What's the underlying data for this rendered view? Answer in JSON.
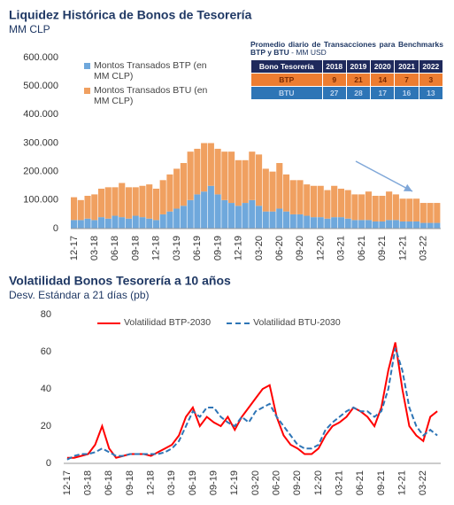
{
  "chart_data": [
    {
      "type": "bar",
      "stacked": true,
      "title": "Liquidez Histórica de Bonos de Tesorería",
      "subtitle": "MM CLP",
      "categories": [
        "12-17",
        null,
        null,
        "03-18",
        null,
        null,
        "06-18",
        null,
        null,
        "09-18",
        null,
        null,
        "12-18",
        null,
        null,
        "03-19",
        null,
        null,
        "06-19",
        null,
        null,
        "09-19",
        null,
        null,
        "12-19",
        null,
        null,
        "03-20",
        null,
        null,
        "06-20",
        null,
        null,
        "09-20",
        null,
        null,
        "12-20",
        null,
        null,
        "03-21",
        null,
        null,
        "06-21",
        null,
        null,
        "09-21",
        null,
        null,
        "12-21",
        null,
        null,
        "03-22",
        null,
        null
      ],
      "series": [
        {
          "name": "Montos Transados BTP (en MM CLP)",
          "color": "#6fa8dc",
          "values": [
            30000,
            30000,
            35000,
            30000,
            40000,
            35000,
            45000,
            40000,
            35000,
            45000,
            40000,
            35000,
            30000,
            50000,
            60000,
            70000,
            80000,
            100000,
            120000,
            130000,
            150000,
            120000,
            100000,
            90000,
            80000,
            90000,
            100000,
            80000,
            60000,
            60000,
            70000,
            60000,
            50000,
            50000,
            45000,
            40000,
            40000,
            35000,
            40000,
            40000,
            35000,
            30000,
            30000,
            30000,
            25000,
            25000,
            30000,
            30000,
            25000,
            25000,
            25000,
            20000,
            20000,
            20000
          ]
        },
        {
          "name": "Montos Transados BTU (en MM CLP)",
          "color": "#f0a060",
          "values": [
            80000,
            70000,
            80000,
            90000,
            100000,
            110000,
            100000,
            120000,
            110000,
            100000,
            110000,
            120000,
            110000,
            120000,
            130000,
            140000,
            150000,
            170000,
            160000,
            170000,
            150000,
            160000,
            170000,
            180000,
            160000,
            150000,
            170000,
            180000,
            150000,
            140000,
            160000,
            130000,
            120000,
            120000,
            110000,
            110000,
            110000,
            100000,
            110000,
            100000,
            100000,
            90000,
            90000,
            100000,
            90000,
            90000,
            100000,
            90000,
            80000,
            80000,
            80000,
            70000,
            70000,
            70000
          ]
        }
      ],
      "ylim": [
        0,
        600000
      ],
      "yticks": [
        0,
        {
          "value": 100000,
          "label": "100.000"
        },
        {
          "value": 200000,
          "label": "200.000"
        },
        {
          "value": 300000,
          "label": "300.000"
        },
        {
          "value": 400000,
          "label": "400.000"
        },
        {
          "value": 500000,
          "label": "500.000"
        },
        {
          "value": 600000,
          "label": "600.000"
        }
      ],
      "grid": false,
      "legend": "top-left"
    },
    {
      "type": "line",
      "title": "Volatilidad Bonos Tesorería a 10 años",
      "subtitle": "Desv. Estándar a 21 días (pb)",
      "categories": [
        "12-17",
        null,
        null,
        "03-18",
        null,
        null,
        "06-18",
        null,
        null,
        "09-18",
        null,
        null,
        "12-18",
        null,
        null,
        "03-19",
        null,
        null,
        "06-19",
        null,
        null,
        "09-19",
        null,
        null,
        "12-19",
        null,
        null,
        "03-20",
        null,
        null,
        "06-20",
        null,
        null,
        "09-20",
        null,
        null,
        "12-20",
        null,
        null,
        "03-21",
        null,
        null,
        "06-21",
        null,
        null,
        "09-21",
        null,
        null,
        "12-21",
        null,
        null,
        "03-22",
        null,
        null
      ],
      "series": [
        {
          "name": "Volatilidad BTP-2030",
          "color": "#ff0000",
          "dash": false,
          "values": [
            3,
            3,
            4,
            5,
            10,
            20,
            8,
            3,
            4,
            5,
            5,
            5,
            4,
            6,
            8,
            10,
            15,
            25,
            30,
            20,
            25,
            22,
            20,
            25,
            18,
            25,
            30,
            35,
            40,
            42,
            25,
            15,
            10,
            8,
            5,
            5,
            8,
            15,
            20,
            22,
            25,
            30,
            28,
            25,
            20,
            30,
            50,
            65,
            40,
            20,
            15,
            12,
            25,
            28
          ]
        },
        {
          "name": "Volatilidad BTU-2030",
          "color": "#2e75b6",
          "dash": true,
          "values": [
            2,
            4,
            5,
            5,
            6,
            8,
            6,
            4,
            4,
            5,
            5,
            5,
            5,
            5,
            6,
            8,
            12,
            20,
            28,
            25,
            30,
            30,
            25,
            22,
            20,
            25,
            22,
            28,
            30,
            32,
            25,
            20,
            15,
            10,
            8,
            8,
            10,
            18,
            22,
            25,
            28,
            30,
            28,
            28,
            25,
            28,
            40,
            62,
            50,
            30,
            20,
            15,
            18,
            15
          ]
        }
      ],
      "ylim": [
        0,
        80
      ],
      "yticks": [
        0,
        20,
        40,
        60,
        80
      ],
      "grid": false,
      "legend": "top"
    }
  ],
  "table": {
    "title": "Promedio diario de Transacciones para Benchmarks BTP y BTU",
    "unit": "- MM USD",
    "header": [
      "Bono Tesorería",
      "2018",
      "2019",
      "2020",
      "2021",
      "2022"
    ],
    "rows": [
      [
        "BTP",
        "9",
        "21",
        "14",
        "7",
        "3"
      ],
      [
        "BTU",
        "27",
        "28",
        "17",
        "16",
        "13"
      ]
    ]
  }
}
